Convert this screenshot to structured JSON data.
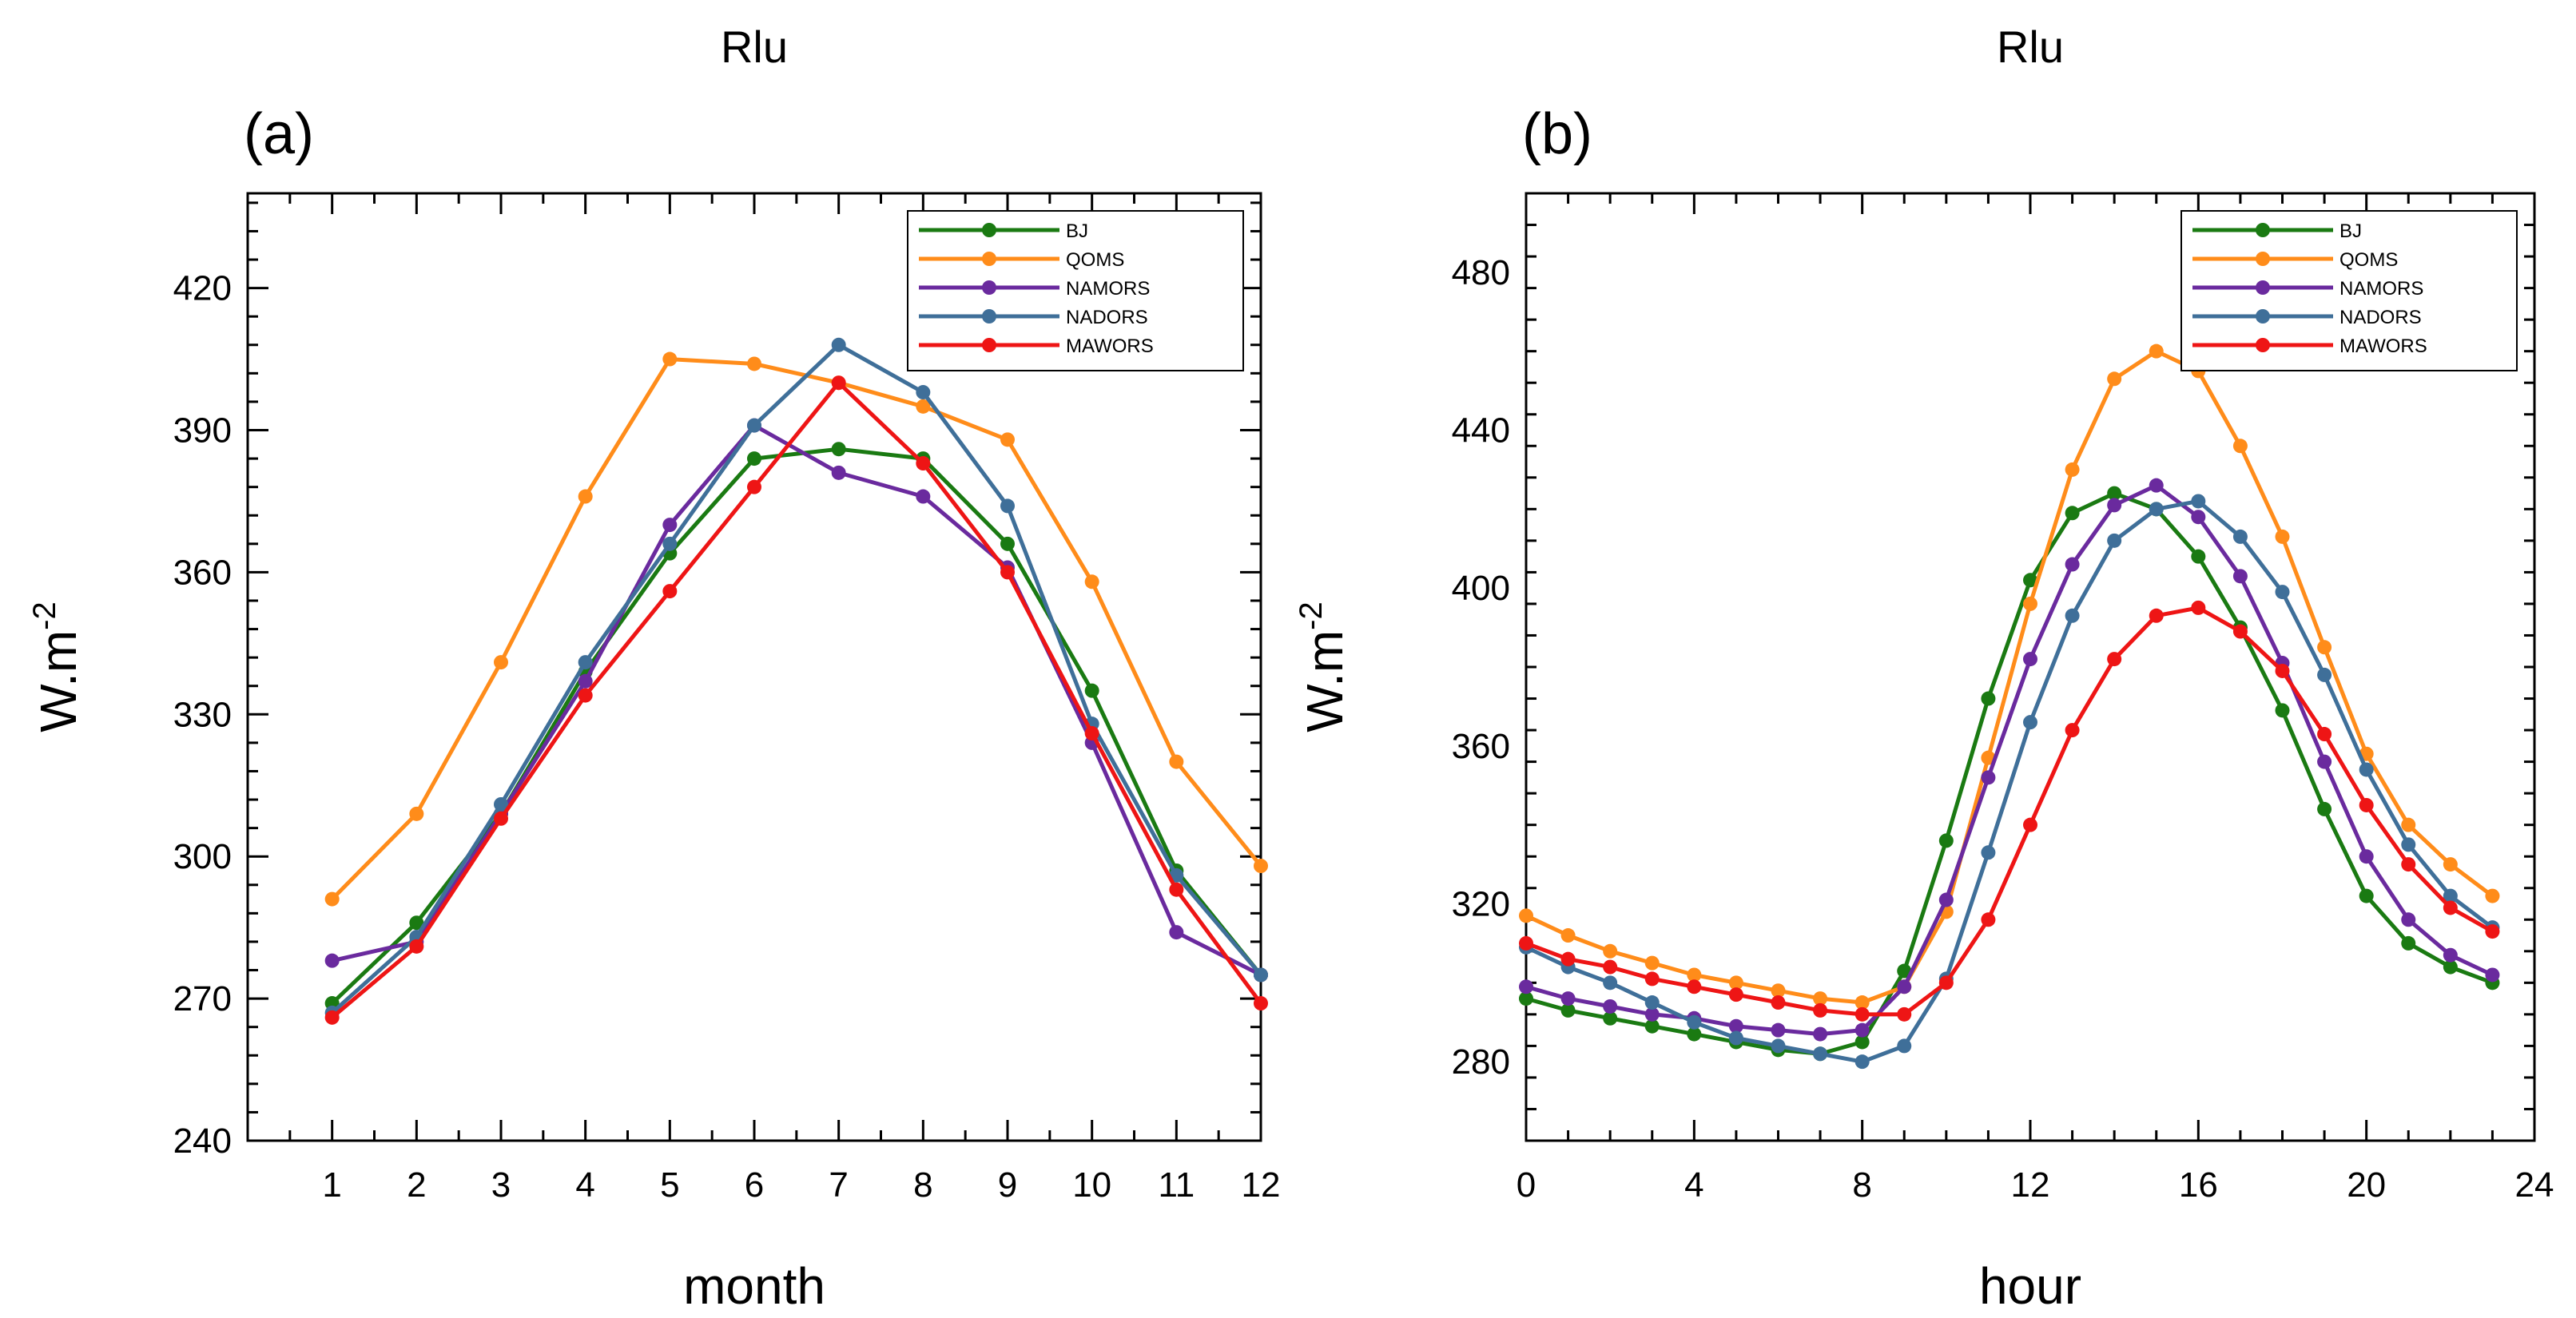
{
  "chart_data": [
    {
      "type": "line",
      "panel_label": "(a)",
      "title": "Rlu",
      "xlabel": "month",
      "ylabel": "W.m",
      "ylabel_superscript": "-2",
      "xlim": [
        0,
        12
      ],
      "ylim": [
        240,
        440
      ],
      "xticks": [
        1,
        2,
        3,
        4,
        5,
        6,
        7,
        8,
        9,
        10,
        11,
        12
      ],
      "yticks": [
        240,
        270,
        300,
        330,
        360,
        390,
        420
      ],
      "legend_position": "top-right",
      "x": [
        1,
        2,
        3,
        4,
        5,
        6,
        7,
        8,
        9,
        10,
        11,
        12
      ],
      "series": [
        {
          "name": "BJ",
          "color": "#1a7a12",
          "values": [
            269,
            286,
            309,
            339,
            364,
            384,
            386,
            384,
            366,
            335,
            297,
            275
          ]
        },
        {
          "name": "QOMS",
          "color": "#ff8c1a",
          "values": [
            291,
            309,
            341,
            376,
            405,
            404,
            400,
            395,
            388,
            358,
            320,
            298
          ]
        },
        {
          "name": "NAMORS",
          "color": "#6a2a9e",
          "values": [
            278,
            282,
            309,
            337,
            370,
            391,
            381,
            376,
            361,
            324,
            284,
            275
          ]
        },
        {
          "name": "NADORS",
          "color": "#3f6f99",
          "values": [
            267,
            283,
            311,
            341,
            366,
            391,
            408,
            398,
            374,
            328,
            296,
            275
          ]
        },
        {
          "name": "MAWORS",
          "color": "#ee1515",
          "values": [
            266,
            281,
            308,
            334,
            356,
            378,
            400,
            383,
            360,
            326,
            293,
            269
          ]
        }
      ]
    },
    {
      "type": "line",
      "panel_label": "(b)",
      "title": "Rlu",
      "xlabel": "hour",
      "ylabel": "W.m",
      "ylabel_superscript": "-2",
      "xlim": [
        0,
        24
      ],
      "ylim": [
        260,
        500
      ],
      "xticks": [
        0,
        4,
        8,
        12,
        16,
        20,
        24
      ],
      "yticks": [
        280,
        320,
        360,
        400,
        440,
        480
      ],
      "legend_position": "top-right",
      "x": [
        0,
        1,
        2,
        3,
        4,
        5,
        6,
        7,
        8,
        9,
        10,
        11,
        12,
        13,
        14,
        15,
        16,
        17,
        18,
        19,
        20,
        21,
        22,
        23
      ],
      "series": [
        {
          "name": "BJ",
          "color": "#1a7a12",
          "values": [
            296,
            293,
            291,
            289,
            287,
            285,
            283,
            282,
            285,
            303,
            336,
            372,
            402,
            419,
            424,
            420,
            408,
            390,
            369,
            344,
            322,
            310,
            304,
            300
          ]
        },
        {
          "name": "QOMS",
          "color": "#ff8c1a",
          "values": [
            317,
            312,
            308,
            305,
            302,
            300,
            298,
            296,
            295,
            299,
            318,
            357,
            396,
            430,
            453,
            460,
            455,
            436,
            413,
            385,
            358,
            340,
            330,
            322
          ]
        },
        {
          "name": "NAMORS",
          "color": "#6a2a9e",
          "values": [
            299,
            296,
            294,
            292,
            291,
            289,
            288,
            287,
            288,
            299,
            321,
            352,
            382,
            406,
            421,
            426,
            418,
            403,
            381,
            356,
            332,
            316,
            307,
            302
          ]
        },
        {
          "name": "NADORS",
          "color": "#3f6f99",
          "values": [
            309,
            304,
            300,
            295,
            290,
            286,
            284,
            282,
            280,
            284,
            301,
            333,
            366,
            393,
            412,
            420,
            422,
            413,
            399,
            378,
            354,
            335,
            322,
            314
          ]
        },
        {
          "name": "MAWORS",
          "color": "#ee1515",
          "values": [
            310,
            306,
            304,
            301,
            299,
            297,
            295,
            293,
            292,
            292,
            300,
            316,
            340,
            364,
            382,
            393,
            395,
            389,
            379,
            363,
            345,
            330,
            319,
            313
          ]
        }
      ]
    }
  ]
}
